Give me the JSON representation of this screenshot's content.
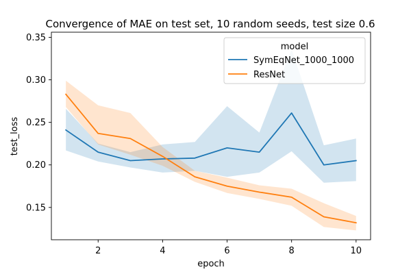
{
  "chart_data": {
    "type": "line",
    "title": "Convergence of MAE on test set, 10 random seeds, test size 0.6",
    "xlabel": "epoch",
    "ylabel": "test_loss",
    "xlim": [
      0.55,
      10.45
    ],
    "ylim": [
      0.112,
      0.356
    ],
    "xticks": [
      2,
      4,
      6,
      8,
      10
    ],
    "yticks": [
      0.15,
      0.2,
      0.25,
      0.3,
      0.35
    ],
    "ytick_labels": [
      "0.15",
      "0.20",
      "0.25",
      "0.30",
      "0.35"
    ],
    "grid": false,
    "legend": {
      "title": "model",
      "placement": "top-right"
    },
    "x": [
      1,
      2,
      3,
      4,
      5,
      6,
      7,
      8,
      9,
      10
    ],
    "series": [
      {
        "name": "SymEqNet_1000_1000",
        "color": "#1f77b4",
        "values": [
          0.241,
          0.215,
          0.205,
          0.207,
          0.208,
          0.22,
          0.215,
          0.261,
          0.2,
          0.205
        ],
        "ci_low": [
          0.217,
          0.204,
          0.197,
          0.191,
          0.193,
          0.186,
          0.191,
          0.216,
          0.179,
          0.181
        ],
        "ci_high": [
          0.266,
          0.225,
          0.215,
          0.224,
          0.227,
          0.269,
          0.238,
          0.336,
          0.223,
          0.231
        ]
      },
      {
        "name": "ResNet",
        "color": "#ff7f0e",
        "values": [
          0.283,
          0.237,
          0.231,
          0.21,
          0.186,
          0.175,
          0.168,
          0.162,
          0.139,
          0.132
        ],
        "ci_low": [
          0.268,
          0.224,
          0.212,
          0.199,
          0.18,
          0.167,
          0.16,
          0.152,
          0.127,
          0.123
        ],
        "ci_high": [
          0.299,
          0.27,
          0.261,
          0.221,
          0.193,
          0.185,
          0.176,
          0.172,
          0.155,
          0.14
        ]
      }
    ]
  }
}
